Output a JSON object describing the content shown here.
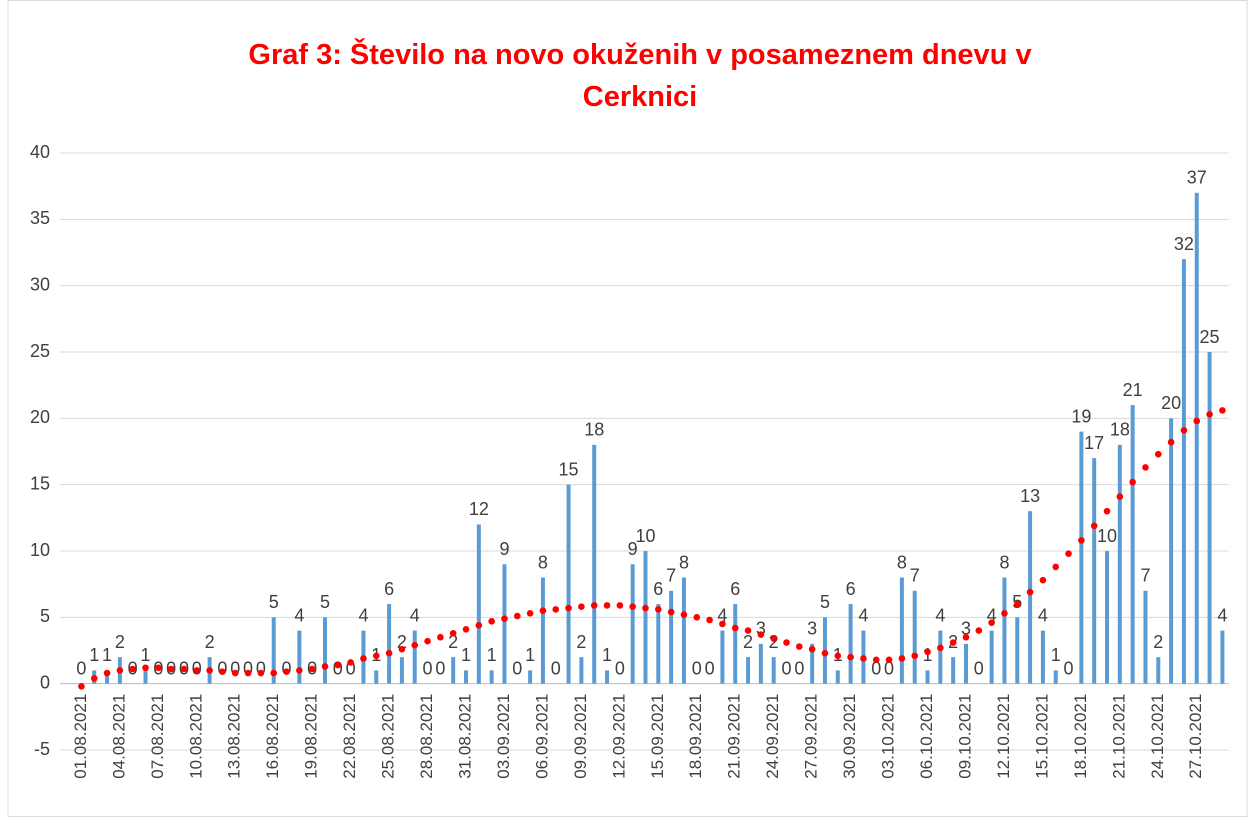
{
  "chart_data": {
    "type": "bar",
    "title": "Graf 3: Število na novo okuženih v posameznem dnevu v Cerknici",
    "categories": [
      "01.08.2021",
      null,
      null,
      "04.08.2021",
      null,
      null,
      "07.08.2021",
      null,
      null,
      "10.08.2021",
      null,
      null,
      "13.08.2021",
      null,
      null,
      "16.08.2021",
      null,
      null,
      "19.08.2021",
      null,
      null,
      "22.08.2021",
      null,
      null,
      "25.08.2021",
      null,
      null,
      "28.08.2021",
      null,
      null,
      "31.08.2021",
      null,
      null,
      "03.09.2021",
      null,
      null,
      "06.09.2021",
      null,
      null,
      "09.09.2021",
      null,
      null,
      "12.09.2021",
      null,
      null,
      "15.09.2021",
      null,
      null,
      "18.09.2021",
      null,
      null,
      "21.09.2021",
      null,
      null,
      "24.09.2021",
      null,
      null,
      "27.09.2021",
      null,
      null,
      "30.09.2021",
      null,
      null,
      "03.10.2021",
      null,
      null,
      "06.10.2021",
      null,
      null,
      "09.10.2021",
      null,
      null,
      "12.10.2021",
      null,
      null,
      "15.10.2021",
      null,
      null,
      "18.10.2021",
      null,
      null,
      "21.10.2021",
      null,
      null,
      "24.10.2021",
      null,
      null,
      "27.10.2021",
      null,
      null
    ],
    "values": [
      0,
      1,
      1,
      2,
      0,
      1,
      0,
      0,
      0,
      0,
      2,
      0,
      0,
      0,
      0,
      5,
      0,
      4,
      0,
      5,
      0,
      0,
      4,
      1,
      6,
      2,
      4,
      0,
      0,
      2,
      1,
      12,
      1,
      9,
      0,
      1,
      8,
      0,
      15,
      2,
      18,
      1,
      0,
      9,
      10,
      6,
      7,
      8,
      0,
      0,
      4,
      6,
      2,
      3,
      2,
      0,
      0,
      3,
      5,
      1,
      6,
      4,
      0,
      0,
      8,
      7,
      1,
      4,
      2,
      3,
      0,
      4,
      8,
      5,
      13,
      4,
      1,
      0,
      19,
      17,
      10,
      18,
      21,
      7,
      2,
      20,
      32,
      37,
      25,
      4
    ],
    "color": "#5b9bd5",
    "trend": {
      "color": "#ff0000",
      "values": [
        -0.2,
        0.4,
        0.8,
        1.0,
        1.1,
        1.2,
        1.2,
        1.1,
        1.1,
        1.0,
        1.0,
        0.9,
        0.8,
        0.8,
        0.8,
        0.8,
        0.9,
        1.0,
        1.1,
        1.3,
        1.4,
        1.6,
        1.9,
        2.1,
        2.3,
        2.6,
        2.9,
        3.2,
        3.5,
        3.8,
        4.1,
        4.4,
        4.7,
        4.9,
        5.1,
        5.3,
        5.5,
        5.6,
        5.7,
        5.8,
        5.9,
        5.9,
        5.9,
        5.8,
        5.7,
        5.6,
        5.4,
        5.2,
        5.0,
        4.8,
        4.5,
        4.2,
        4.0,
        3.7,
        3.4,
        3.1,
        2.8,
        2.6,
        2.3,
        2.1,
        2.0,
        1.9,
        1.8,
        1.8,
        1.9,
        2.1,
        2.4,
        2.7,
        3.1,
        3.5,
        4.0,
        4.6,
        5.3,
        6.0,
        6.9,
        7.8,
        8.8,
        9.8,
        10.8,
        11.9,
        13.0,
        14.1,
        15.2,
        16.3,
        17.3,
        18.2,
        19.1,
        19.8,
        20.3,
        20.6
      ]
    },
    "ylim": [
      -5,
      40
    ],
    "yticks": [
      -5,
      0,
      5,
      10,
      15,
      20,
      25,
      30,
      35,
      40
    ],
    "grid": true
  }
}
